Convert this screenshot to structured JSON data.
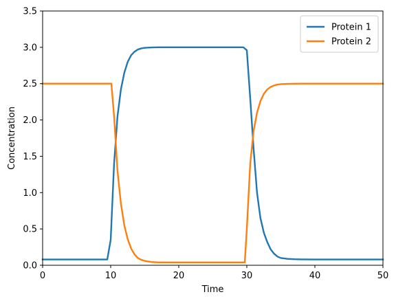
{
  "chart_data": {
    "type": "line",
    "title": "",
    "xlabel": "Time",
    "ylabel": "Concentration",
    "xlim": [
      0,
      50
    ],
    "ylim": [
      0,
      3.5
    ],
    "xticks": [
      0,
      10,
      20,
      30,
      40,
      50
    ],
    "yticks": [
      0.0,
      0.5,
      1.0,
      1.5,
      2.0,
      2.5,
      3.0,
      3.5
    ],
    "xtick_labels": [
      "0",
      "10",
      "20",
      "30",
      "40",
      "50"
    ],
    "ytick_labels": [
      "0.0",
      "0.5",
      "1.0",
      "1.5",
      "2.0",
      "2.5",
      "3.0",
      "3.5"
    ],
    "grid": false,
    "legend_position": "top-right",
    "series": [
      {
        "name": "Protein 1",
        "color": "#1f77b4",
        "x": [
          0,
          9.5,
          10,
          10.5,
          11,
          11.5,
          12,
          12.5,
          13,
          13.5,
          14,
          14.5,
          15,
          16,
          17,
          18,
          20,
          25,
          29.5,
          30,
          30.5,
          31,
          31.5,
          32,
          32.5,
          33,
          33.5,
          34,
          34.5,
          35,
          36,
          37,
          38,
          40,
          45,
          50
        ],
        "y": [
          0.08,
          0.08,
          0.35,
          1.4,
          2.05,
          2.42,
          2.65,
          2.8,
          2.89,
          2.94,
          2.97,
          2.985,
          2.993,
          2.998,
          3.0,
          3.0,
          3.0,
          3.0,
          3.0,
          2.96,
          2.3,
          1.6,
          1.0,
          0.65,
          0.45,
          0.32,
          0.22,
          0.16,
          0.12,
          0.1,
          0.088,
          0.083,
          0.081,
          0.08,
          0.08,
          0.08
        ]
      },
      {
        "name": "Protein 2",
        "color": "#ff7f0e",
        "x": [
          0,
          10.1,
          10.5,
          11,
          11.5,
          12,
          12.5,
          13,
          13.5,
          14,
          14.5,
          15,
          16,
          17,
          18,
          20,
          25,
          29.7,
          30,
          30.5,
          31,
          31.5,
          32,
          32.5,
          33,
          33.5,
          34,
          34.5,
          35,
          36,
          37,
          38,
          40,
          45,
          50
        ],
        "y": [
          2.5,
          2.5,
          2.05,
          1.3,
          0.85,
          0.55,
          0.36,
          0.23,
          0.15,
          0.1,
          0.075,
          0.06,
          0.045,
          0.04,
          0.04,
          0.04,
          0.04,
          0.04,
          0.5,
          1.4,
          1.85,
          2.1,
          2.26,
          2.36,
          2.42,
          2.455,
          2.475,
          2.487,
          2.493,
          2.497,
          2.499,
          2.5,
          2.5,
          2.5,
          2.5
        ]
      }
    ]
  }
}
